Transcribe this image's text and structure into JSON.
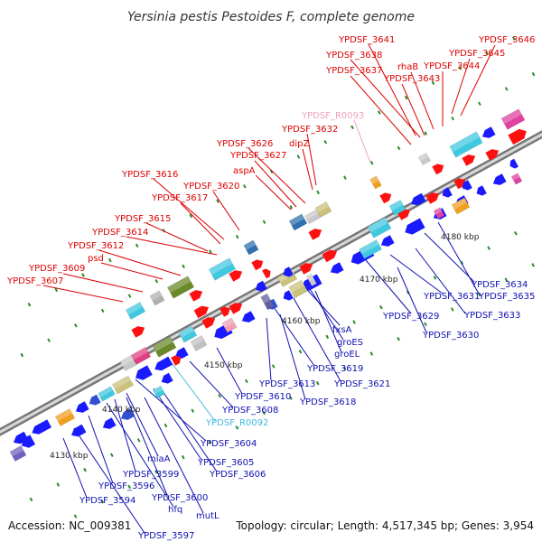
{
  "title": "Yersinia pestis Pestoides F, complete genome",
  "footer": {
    "accession": "Accession: NC_009381",
    "summary": "Topology: circular; Length: 4,517,345 bp; Genes: 3,954"
  },
  "colors": {
    "upper_label": "#dd0000",
    "lower_label": "#1010b0",
    "rna_upper": "#f0a0c0",
    "rna_lower": "#40b8e0",
    "backbone": "#999999"
  },
  "scale_ticks": [
    {
      "label": "4130 kbp"
    },
    {
      "label": "4140 kbp"
    },
    {
      "label": "4150 kbp"
    },
    {
      "label": "4160 kbp"
    },
    {
      "label": "4170 kbp"
    },
    {
      "label": "4180 kbp"
    }
  ],
  "upper_labels": [
    {
      "text": "YPDSF_3641",
      "type": "gene"
    },
    {
      "text": "YPDSF_3646",
      "type": "gene"
    },
    {
      "text": "YPDSF_3638",
      "type": "gene"
    },
    {
      "text": "YPDSF_3645",
      "type": "gene"
    },
    {
      "text": "rhaB",
      "type": "gene"
    },
    {
      "text": "YPDSF_3644",
      "type": "gene"
    },
    {
      "text": "YPDSF_3637",
      "type": "gene"
    },
    {
      "text": "YPDSF_3643",
      "type": "gene"
    },
    {
      "text": "YPDSF_R0093",
      "type": "rna"
    },
    {
      "text": "YPDSF_3632",
      "type": "gene"
    },
    {
      "text": "YPDSF_3626",
      "type": "gene"
    },
    {
      "text": "dipZ",
      "type": "gene"
    },
    {
      "text": "YPDSF_3627",
      "type": "gene"
    },
    {
      "text": "aspA",
      "type": "gene"
    },
    {
      "text": "YPDSF_3616",
      "type": "gene"
    },
    {
      "text": "YPDSF_3620",
      "type": "gene"
    },
    {
      "text": "YPDSF_3617",
      "type": "gene"
    },
    {
      "text": "YPDSF_3615",
      "type": "gene"
    },
    {
      "text": "YPDSF_3614",
      "type": "gene"
    },
    {
      "text": "YPDSF_3612",
      "type": "gene"
    },
    {
      "text": "psd",
      "type": "gene"
    },
    {
      "text": "YPDSF_3609",
      "type": "gene"
    },
    {
      "text": "YPDSF_3607",
      "type": "gene"
    }
  ],
  "lower_labels": [
    {
      "text": "YPDSF_3634",
      "type": "gene"
    },
    {
      "text": "YPDSF_3631",
      "type": "gene"
    },
    {
      "text": "YPDSF_3635",
      "type": "gene"
    },
    {
      "text": "YPDSF_3629",
      "type": "gene"
    },
    {
      "text": "YPDSF_3633",
      "type": "gene"
    },
    {
      "text": "fxsA",
      "type": "gene"
    },
    {
      "text": "YPDSF_3630",
      "type": "gene"
    },
    {
      "text": "groES",
      "type": "gene"
    },
    {
      "text": "groEL",
      "type": "gene"
    },
    {
      "text": "YPDSF_3619",
      "type": "gene"
    },
    {
      "text": "YPDSF_3621",
      "type": "gene"
    },
    {
      "text": "YPDSF_3613",
      "type": "gene"
    },
    {
      "text": "YPDSF_3610",
      "type": "gene"
    },
    {
      "text": "YPDSF_3618",
      "type": "gene"
    },
    {
      "text": "YPDSF_3608",
      "type": "gene"
    },
    {
      "text": "YPDSF_R0092",
      "type": "rna"
    },
    {
      "text": "YPDSF_3604",
      "type": "gene"
    },
    {
      "text": "YPDSF_3605",
      "type": "gene"
    },
    {
      "text": "miaA",
      "type": "gene"
    },
    {
      "text": "YPDSF_3606",
      "type": "gene"
    },
    {
      "text": "YPDSF_3599",
      "type": "gene"
    },
    {
      "text": "YPDSF_3596",
      "type": "gene"
    },
    {
      "text": "YPDSF_3600",
      "type": "gene"
    },
    {
      "text": "YPDSF_3594",
      "type": "gene"
    },
    {
      "text": "hfq",
      "type": "gene"
    },
    {
      "text": "mutL",
      "type": "gene"
    },
    {
      "text": "YPDSF_3597",
      "type": "gene"
    }
  ]
}
